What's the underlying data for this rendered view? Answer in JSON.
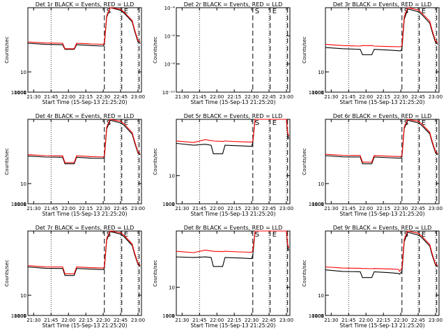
{
  "colors": {
    "events": "#000000",
    "lld": "#ff0000",
    "axis": "#000000",
    "background": "#ffffff"
  },
  "legend_note": "BLACK = Events, RED = LLD",
  "chart_data": [
    {
      "type": "line",
      "title": "Det 1r BLACK = Events, RED = LLD",
      "xlabel": "Start Time (15-Sep-13 21:25:20)",
      "ylabel": "Counts/sec",
      "yscale": "log",
      "xlim": [
        "21:25",
        "23:03"
      ],
      "ylim": [
        1,
        15000
      ],
      "xticks": [
        "21:30",
        "21:45",
        "22:00",
        "22:15",
        "22:30",
        "22:45",
        "23:00"
      ],
      "yticks": [
        "1",
        "10",
        "100",
        "1000",
        "10000"
      ],
      "markers": [
        {
          "label": "S",
          "time": "22:31"
        },
        {
          "label": "E",
          "time": "22:46"
        }
      ],
      "series": [
        {
          "name": "Events",
          "color": "#000000",
          "x": [
            "21:25",
            "21:40",
            "21:55",
            "21:57",
            "22:05",
            "22:07",
            "22:20",
            "22:30",
            "22:31",
            "22:33",
            "22:36",
            "22:45",
            "22:48",
            "22:55",
            "22:57",
            "23:00",
            "23:02"
          ],
          "y": [
            260,
            230,
            220,
            130,
            130,
            220,
            200,
            190,
            230,
            5000,
            15000,
            11000,
            8000,
            3000,
            1100,
            300,
            250
          ]
        },
        {
          "name": "LLD",
          "color": "#ff0000",
          "x": [
            "21:25",
            "21:40",
            "21:55",
            "21:57",
            "22:05",
            "22:07",
            "22:20",
            "22:30",
            "22:31",
            "22:33",
            "22:36",
            "22:45",
            "22:48",
            "22:55",
            "22:57",
            "23:00",
            "23:02"
          ],
          "y": [
            300,
            270,
            260,
            140,
            140,
            260,
            240,
            230,
            280,
            6000,
            16000,
            12500,
            9000,
            3500,
            1300,
            350,
            300
          ]
        }
      ]
    },
    {
      "type": "line",
      "title": "Det 2r BLACK = Events, RED = LLD",
      "xlabel": "Start Time (15-Sep-13 21:25:20)",
      "ylabel": "Counts/sec",
      "yscale": "log",
      "xlim": [
        "21:25",
        "23:03"
      ],
      "ylim": [
        1e-10,
        0.0001
      ],
      "xticks": [
        "21:30",
        "21:45",
        "22:00",
        "22:15",
        "22:30",
        "22:45",
        "23:00"
      ],
      "yticks": [
        "10⁻¹⁰",
        "10⁻⁸",
        "10⁻⁶",
        "10⁻⁴"
      ],
      "markers": [
        {
          "label": "S",
          "time": "22:31"
        },
        {
          "label": "E",
          "time": "22:46"
        }
      ],
      "series": []
    },
    {
      "type": "line",
      "title": "Det 3r BLACK = Events, RED = LLD",
      "xlabel": "Start Time (15-Sep-13 21:25:20)",
      "ylabel": "Counts/sec",
      "yscale": "log",
      "xlim": [
        "21:25",
        "23:03"
      ],
      "ylim": [
        1,
        15000
      ],
      "xticks": [
        "21:30",
        "21:45",
        "22:00",
        "22:15",
        "22:30",
        "22:45",
        "23:00"
      ],
      "yticks": [
        "1",
        "10",
        "100",
        "1000",
        "10000"
      ],
      "markers": [
        {
          "label": "S",
          "time": "22:31"
        },
        {
          "label": "E",
          "time": "22:46"
        }
      ],
      "series": [
        {
          "name": "Events",
          "color": "#000000",
          "x": [
            "21:25",
            "21:40",
            "21:55",
            "21:57",
            "22:05",
            "22:07",
            "22:20",
            "22:30",
            "22:31",
            "22:33",
            "22:36",
            "22:45",
            "22:48",
            "22:55",
            "22:57",
            "23:00",
            "23:02"
          ],
          "y": [
            160,
            140,
            130,
            70,
            70,
            130,
            120,
            110,
            140,
            4000,
            13000,
            9500,
            7000,
            2600,
            1000,
            280,
            230
          ]
        },
        {
          "name": "LLD",
          "color": "#ff0000",
          "x": [
            "21:25",
            "21:40",
            "21:55",
            "21:57",
            "22:05",
            "22:07",
            "22:20",
            "22:30",
            "22:31",
            "22:33",
            "22:36",
            "22:45",
            "22:48",
            "22:55",
            "22:57",
            "23:00",
            "23:02"
          ],
          "y": [
            230,
            200,
            190,
            200,
            200,
            190,
            180,
            175,
            200,
            5500,
            15000,
            11500,
            8200,
            3200,
            1200,
            330,
            280
          ]
        }
      ]
    },
    {
      "type": "line",
      "title": "Det 4r BLACK = Events, RED = LLD",
      "xlabel": "Start Time (15-Sep-13 21:25:20)",
      "ylabel": "Counts/sec",
      "yscale": "log",
      "xlim": [
        "21:25",
        "23:03"
      ],
      "ylim": [
        1,
        15000
      ],
      "xticks": [
        "21:30",
        "21:45",
        "22:00",
        "22:15",
        "22:30",
        "22:45",
        "23:00"
      ],
      "yticks": [
        "1",
        "10",
        "100",
        "1000",
        "10000"
      ],
      "markers": [
        {
          "label": "S",
          "time": "22:31"
        },
        {
          "label": "E",
          "time": "22:46"
        }
      ],
      "series": [
        {
          "name": "Events",
          "color": "#000000",
          "x": [
            "21:25",
            "21:40",
            "21:55",
            "21:57",
            "22:05",
            "22:07",
            "22:20",
            "22:30",
            "22:31",
            "22:33",
            "22:36",
            "22:45",
            "22:48",
            "22:55",
            "22:57",
            "23:00",
            "23:02"
          ],
          "y": [
            230,
            205,
            200,
            95,
            95,
            200,
            180,
            175,
            200,
            5000,
            13500,
            10000,
            7500,
            2800,
            1100,
            320,
            260
          ]
        },
        {
          "name": "LLD",
          "color": "#ff0000",
          "x": [
            "21:25",
            "21:40",
            "21:55",
            "21:57",
            "22:05",
            "22:07",
            "22:20",
            "22:30",
            "22:31",
            "22:33",
            "22:36",
            "22:45",
            "22:48",
            "22:55",
            "22:57",
            "23:00",
            "23:02"
          ],
          "y": [
            270,
            240,
            235,
            110,
            110,
            235,
            215,
            205,
            240,
            6200,
            15500,
            12000,
            9000,
            3300,
            1300,
            360,
            300
          ]
        }
      ]
    },
    {
      "type": "line",
      "title": "Det 5r BLACK = Events, RED = LLD",
      "xlabel": "Start Time (15-Sep-13 21:25:20)",
      "ylabel": "Counts/sec",
      "yscale": "log",
      "xlim": [
        "21:25",
        "23:03"
      ],
      "ylim": [
        1,
        1000
      ],
      "xticks": [
        "21:30",
        "21:45",
        "22:00",
        "22:15",
        "22:30",
        "22:45",
        "23:00"
      ],
      "yticks": [
        "1",
        "10",
        "100",
        "1000"
      ],
      "markers": [
        {
          "label": "S",
          "time": "22:31"
        },
        {
          "label": "E",
          "time": "22:46"
        }
      ],
      "series": [
        {
          "name": "Events",
          "color": "#000000",
          "x": [
            "21:25",
            "21:40",
            "21:50",
            "21:55",
            "21:57",
            "22:05",
            "22:07",
            "22:20",
            "22:30",
            "22:31",
            "22:33",
            "22:58",
            "23:00",
            "23:01",
            "23:02"
          ],
          "y": [
            140,
            120,
            130,
            120,
            60,
            60,
            120,
            115,
            110,
            150,
            1000,
            1000,
            1000,
            300,
            200
          ]
        },
        {
          "name": "LLD",
          "color": "#ff0000",
          "x": [
            "21:25",
            "21:40",
            "21:50",
            "21:55",
            "21:57",
            "22:05",
            "22:07",
            "22:20",
            "22:30",
            "22:31",
            "22:33",
            "22:58",
            "23:00",
            "23:01",
            "23:02"
          ],
          "y": [
            170,
            150,
            190,
            175,
            170,
            165,
            170,
            160,
            155,
            170,
            1000,
            1000,
            1000,
            350,
            250
          ]
        }
      ]
    },
    {
      "type": "line",
      "title": "Det 6r BLACK = Events, RED = LLD",
      "xlabel": "Start Time (15-Sep-13 21:25:20)",
      "ylabel": "Counts/sec",
      "yscale": "log",
      "xlim": [
        "21:25",
        "23:03"
      ],
      "ylim": [
        1,
        15000
      ],
      "xticks": [
        "21:30",
        "21:45",
        "22:00",
        "22:15",
        "22:30",
        "22:45",
        "23:00"
      ],
      "yticks": [
        "1",
        "10",
        "100",
        "1000",
        "10000"
      ],
      "markers": [
        {
          "label": "S",
          "time": "22:31"
        },
        {
          "label": "E",
          "time": "22:46"
        }
      ],
      "series": [
        {
          "name": "Events",
          "color": "#000000",
          "x": [
            "21:25",
            "21:40",
            "21:55",
            "21:57",
            "22:05",
            "22:07",
            "22:20",
            "22:30",
            "22:31",
            "22:33",
            "22:36",
            "22:45",
            "22:48",
            "22:55",
            "22:57",
            "23:00",
            "23:02"
          ],
          "y": [
            240,
            210,
            205,
            95,
            95,
            205,
            190,
            180,
            210,
            5200,
            13500,
            10000,
            7600,
            2900,
            1100,
            330,
            270
          ]
        },
        {
          "name": "LLD",
          "color": "#ff0000",
          "x": [
            "21:25",
            "21:40",
            "21:55",
            "21:57",
            "22:05",
            "22:07",
            "22:20",
            "22:30",
            "22:31",
            "22:33",
            "22:36",
            "22:45",
            "22:48",
            "22:55",
            "22:57",
            "23:00",
            "23:02"
          ],
          "y": [
            280,
            250,
            245,
            115,
            115,
            245,
            225,
            215,
            250,
            6300,
            15500,
            12000,
            9100,
            3400,
            1300,
            370,
            310
          ]
        }
      ]
    },
    {
      "type": "line",
      "title": "Det 7r BLACK = Events, RED = LLD",
      "xlabel": "Start Time (15-Sep-13 21:25:20)",
      "ylabel": "Counts/sec",
      "yscale": "log",
      "xlim": [
        "21:25",
        "23:03"
      ],
      "ylim": [
        1,
        15000
      ],
      "xticks": [
        "21:30",
        "21:45",
        "22:00",
        "22:15",
        "22:30",
        "22:45",
        "23:00"
      ],
      "yticks": [
        "1",
        "10",
        "100",
        "1000",
        "10000"
      ],
      "markers": [
        {
          "label": "S",
          "time": "22:31"
        },
        {
          "label": "E",
          "time": "22:46"
        }
      ],
      "series": [
        {
          "name": "Events",
          "color": "#000000",
          "x": [
            "21:25",
            "21:40",
            "21:55",
            "21:57",
            "22:05",
            "22:07",
            "22:20",
            "22:30",
            "22:31",
            "22:33",
            "22:36",
            "22:45",
            "22:48",
            "22:55",
            "22:57",
            "23:00",
            "23:02"
          ],
          "y": [
            250,
            215,
            210,
            95,
            95,
            210,
            195,
            185,
            215,
            5300,
            14000,
            10500,
            7800,
            2900,
            1100,
            330,
            270
          ]
        },
        {
          "name": "LLD",
          "color": "#ff0000",
          "x": [
            "21:25",
            "21:40",
            "21:55",
            "21:57",
            "22:05",
            "22:07",
            "22:20",
            "22:30",
            "22:31",
            "22:33",
            "22:36",
            "22:45",
            "22:48",
            "22:55",
            "22:57",
            "23:00",
            "23:02"
          ],
          "y": [
            290,
            255,
            250,
            115,
            115,
            250,
            230,
            220,
            255,
            6400,
            15800,
            12200,
            9200,
            3400,
            1300,
            370,
            310
          ]
        }
      ]
    },
    {
      "type": "line",
      "title": "Det 8r BLACK = Events, RED = LLD",
      "xlabel": "Start Time (15-Sep-13 21:25:20)",
      "ylabel": "Counts/sec",
      "yscale": "log",
      "xlim": [
        "21:25",
        "23:03"
      ],
      "ylim": [
        1,
        1000
      ],
      "xticks": [
        "21:30",
        "21:45",
        "22:00",
        "22:15",
        "22:30",
        "22:45",
        "23:00"
      ],
      "yticks": [
        "1",
        "10",
        "100",
        "1000"
      ],
      "markers": [
        {
          "label": "S",
          "time": "22:31"
        },
        {
          "label": "E",
          "time": "22:46"
        }
      ],
      "series": [
        {
          "name": "Events",
          "color": "#000000",
          "x": [
            "21:25",
            "21:40",
            "21:50",
            "21:55",
            "21:57",
            "22:05",
            "22:07",
            "22:20",
            "22:30",
            "22:31",
            "22:33",
            "22:58",
            "23:00",
            "23:01",
            "23:02"
          ],
          "y": [
            120,
            115,
            120,
            115,
            55,
            55,
            115,
            110,
            105,
            140,
            1000,
            1000,
            1000,
            300,
            200
          ]
        },
        {
          "name": "LLD",
          "color": "#ff0000",
          "x": [
            "21:25",
            "21:40",
            "21:50",
            "21:55",
            "21:57",
            "22:05",
            "22:07",
            "22:20",
            "22:30",
            "22:31",
            "22:33",
            "22:58",
            "23:00",
            "23:01",
            "23:02"
          ],
          "y": [
            190,
            170,
            210,
            195,
            190,
            185,
            190,
            180,
            175,
            200,
            1000,
            1000,
            1000,
            350,
            250
          ]
        }
      ]
    },
    {
      "type": "line",
      "title": "Det 9r BLACK = Events, RED = LLD",
      "xlabel": "Start Time (15-Sep-13 21:25:20)",
      "ylabel": "Counts/sec",
      "yscale": "log",
      "xlim": [
        "21:25",
        "23:03"
      ],
      "ylim": [
        1,
        15000
      ],
      "xticks": [
        "21:30",
        "21:45",
        "22:00",
        "22:15",
        "22:30",
        "22:45",
        "23:00"
      ],
      "yticks": [
        "1",
        "10",
        "100",
        "1000",
        "10000"
      ],
      "markers": [
        {
          "label": "S",
          "time": "22:31"
        },
        {
          "label": "E",
          "time": "22:46"
        }
      ],
      "series": [
        {
          "name": "Events",
          "color": "#000000",
          "x": [
            "21:25",
            "21:40",
            "21:55",
            "21:57",
            "22:05",
            "22:07",
            "22:20",
            "22:28",
            "22:29",
            "22:31",
            "22:33",
            "22:36",
            "22:45",
            "22:48",
            "22:55",
            "22:57",
            "23:00",
            "23:02"
          ],
          "y": [
            180,
            150,
            145,
            75,
            75,
            145,
            130,
            120,
            110,
            150,
            4500,
            13000,
            9500,
            7200,
            2700,
            1000,
            300,
            250
          ]
        },
        {
          "name": "LLD",
          "color": "#ff0000",
          "x": [
            "21:25",
            "21:40",
            "21:55",
            "21:57",
            "22:05",
            "22:07",
            "22:20",
            "22:28",
            "22:29",
            "22:31",
            "22:33",
            "22:36",
            "22:45",
            "22:48",
            "22:55",
            "22:57",
            "23:00",
            "23:02"
          ],
          "y": [
            250,
            220,
            215,
            210,
            205,
            210,
            200,
            190,
            150,
            220,
            5800,
            15000,
            11500,
            8600,
            3200,
            1200,
            340,
            290
          ]
        }
      ]
    }
  ]
}
